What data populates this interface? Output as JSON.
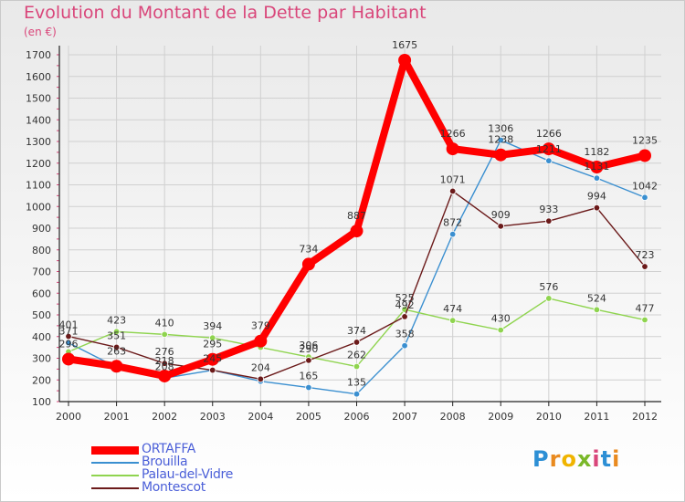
{
  "header": {
    "title": "Evolution du Montant de la Dette par Habitant",
    "subtitle": "(en €)"
  },
  "logo": {
    "text": "Proxiti"
  },
  "colors": {
    "title": "#d9467a",
    "axis": "#222222",
    "grid": "#d0d0d0",
    "tick_marks": "#d9467a",
    "legend_text": "#4b5fd8",
    "value_label": "#333333"
  },
  "chart_data": {
    "type": "line",
    "title": "Evolution du Montant de la Dette par Habitant",
    "subtitle": "(en €)",
    "xlabel": "",
    "ylabel": "",
    "x": [
      "2000",
      "2001",
      "2002",
      "2003",
      "2004",
      "2005",
      "2006",
      "2007",
      "2008",
      "2009",
      "2010",
      "2011",
      "2012"
    ],
    "ylim": [
      100,
      1700
    ],
    "yticks": [
      100,
      200,
      300,
      400,
      500,
      600,
      700,
      800,
      900,
      1000,
      1100,
      1200,
      1300,
      1400,
      1500,
      1600,
      1700
    ],
    "grid": true,
    "legend_position": "bottom-left",
    "series": [
      {
        "name": "ORTAFFA",
        "color": "#ff0000",
        "emphasis": true,
        "values": [
          296,
          263,
          218,
          295,
          379,
          734,
          887,
          1675,
          1266,
          1238,
          1266,
          1182,
          1235
        ],
        "labels": [
          "296",
          "263",
          "218",
          "295",
          "379",
          "734",
          "887",
          "1675",
          "1266",
          "1238",
          "1266",
          "1182",
          "1235"
        ]
      },
      {
        "name": "Brouilla",
        "color": "#3a8fd0",
        "values": [
          371,
          259,
          208,
          245,
          194,
          165,
          135,
          358,
          872,
          1306,
          1211,
          1131,
          1042
        ],
        "labels": [
          "371",
          "",
          "208",
          "",
          "",
          "165",
          "135",
          "358",
          "872",
          "1306",
          "1211",
          "1131",
          "1042"
        ]
      },
      {
        "name": "Palau-del-Vidre",
        "color": "#8fd44f",
        "values": [
          330,
          423,
          410,
          394,
          350,
          306,
          262,
          525,
          474,
          430,
          576,
          524,
          477
        ],
        "labels": [
          "",
          "423",
          "410",
          "394",
          "",
          "306",
          "262",
          "525",
          "474",
          "430",
          "576",
          "524",
          "477"
        ]
      },
      {
        "name": "Montescot",
        "color": "#6b1a1a",
        "values": [
          401,
          351,
          276,
          245,
          204,
          290,
          374,
          492,
          1071,
          909,
          933,
          994,
          723
        ],
        "labels": [
          "401",
          "351",
          "276",
          "245",
          "204",
          "290",
          "374",
          "492",
          "1071",
          "909",
          "933",
          "994",
          "723"
        ]
      }
    ]
  }
}
